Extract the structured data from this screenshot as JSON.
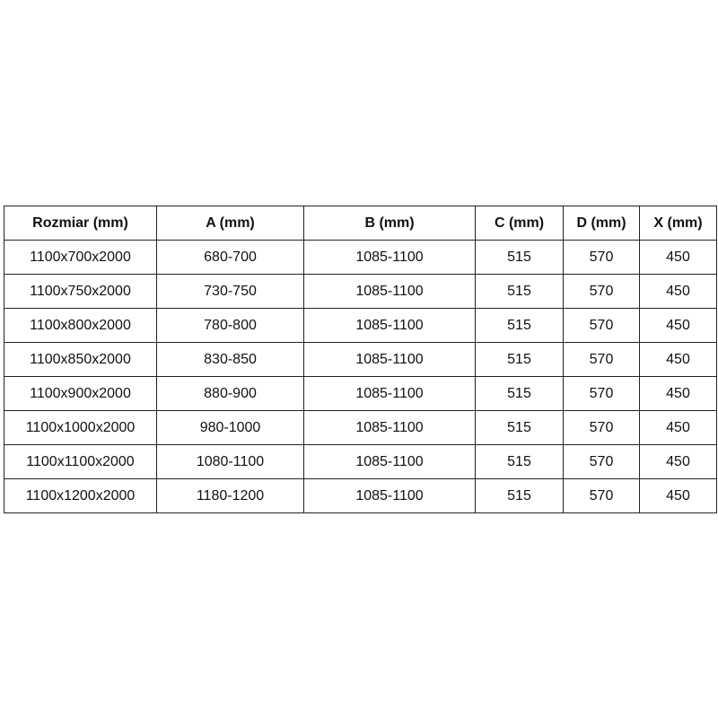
{
  "table": {
    "headers": [
      "Rozmiar (mm)",
      "A (mm)",
      "B (mm)",
      "C (mm)",
      "D (mm)",
      "X (mm)"
    ],
    "rows": [
      [
        "1100x700x2000",
        "680-700",
        "1085-1100",
        "515",
        "570",
        "450"
      ],
      [
        "1100x750x2000",
        "730-750",
        "1085-1100",
        "515",
        "570",
        "450"
      ],
      [
        "1100x800x2000",
        "780-800",
        "1085-1100",
        "515",
        "570",
        "450"
      ],
      [
        "1100x850x2000",
        "830-850",
        "1085-1100",
        "515",
        "570",
        "450"
      ],
      [
        "1100x900x2000",
        "880-900",
        "1085-1100",
        "515",
        "570",
        "450"
      ],
      [
        "1100x1000x2000",
        "980-1000",
        "1085-1100",
        "515",
        "570",
        "450"
      ],
      [
        "1100x1100x2000",
        "1080-1100",
        "1085-1100",
        "515",
        "570",
        "450"
      ],
      [
        "1100x1200x2000",
        "1180-1200",
        "1085-1100",
        "515",
        "570",
        "450"
      ]
    ]
  }
}
